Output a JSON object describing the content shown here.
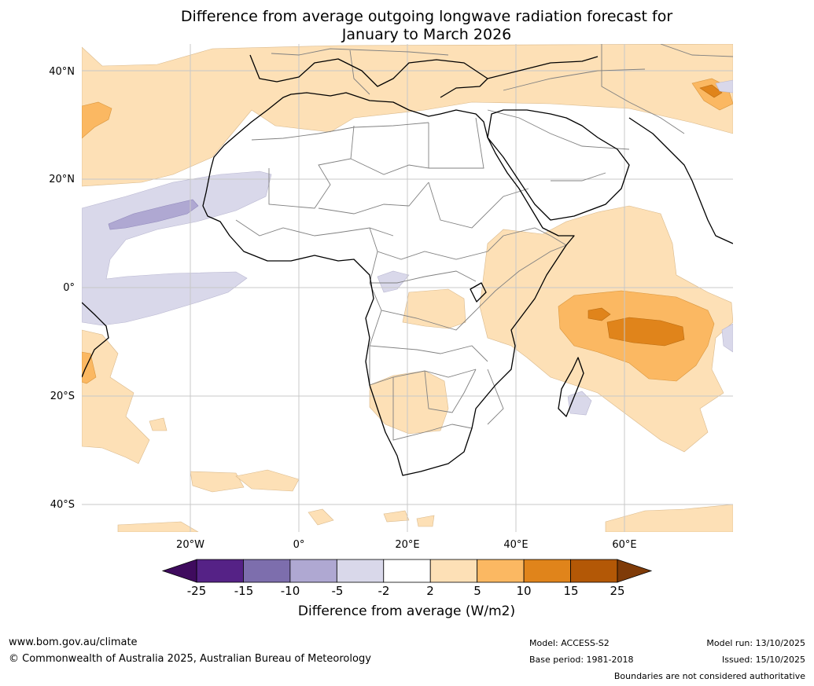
{
  "title": {
    "line1": "Difference from average outgoing longwave radiation forecast for",
    "line2": "January to March 2026"
  },
  "map": {
    "lat_labels": [
      "40°N",
      "20°N",
      "0°",
      "20°S",
      "40°S"
    ],
    "lon_labels": [
      "20°W",
      "0°",
      "20°E",
      "40°E",
      "60°E"
    ],
    "gridline_color": "#c8c8c8",
    "coast_color": "#000000",
    "border_color": "#808080"
  },
  "colorbar": {
    "title": "Difference from average (W/m2)",
    "ticks": [
      "-25",
      "-15",
      "-10",
      "-5",
      "-2",
      "2",
      "5",
      "10",
      "15",
      "25"
    ],
    "colors": [
      "#3f0b5e",
      "#552286",
      "#7d6ead",
      "#afa8d2",
      "#d9d8ea",
      "#ffffff",
      "#fde0b6",
      "#fbb862",
      "#e0841b",
      "#b35806",
      "#7f3b08"
    ]
  },
  "footer": {
    "website": "www.bom.gov.au/climate",
    "copyright": "© Commonwealth of Australia 2025, Australian Bureau of Meteorology",
    "model": "Model: ACCESS-S2",
    "base_period": "Base period: 1981-2018",
    "model_run": "Model run: 13/10/2025",
    "issued": "Issued: 15/10/2025",
    "disclaimer": "Boundaries are not considered authoritative"
  }
}
